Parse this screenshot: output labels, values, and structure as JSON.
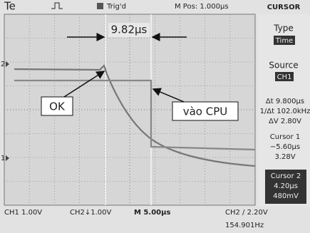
{
  "header": {
    "label": "Te",
    "trigger": "Trig'd",
    "position": "M Pos: 1.000µs",
    "menu": "CURSOR"
  },
  "sidebar": {
    "type_label": "Type",
    "type_value": "Time",
    "source_label": "Source",
    "source_value": "CH1",
    "delta_t": "Δt 9.800µs",
    "inv_delta_t": "1/Δt 102.0kHz",
    "delta_v": "ΔV 2.80V",
    "cursor1_label": "Cursor 1",
    "cursor1_time": "−5.60µs",
    "cursor1_volt": "3.28V",
    "cursor2_label": "Cursor 2",
    "cursor2_time": "4.20µs",
    "cursor2_volt": "480mV"
  },
  "screen": {
    "measurement": "9.82µs",
    "label_ok": "OK",
    "label_cpu": "vào CPU",
    "ch2_marker": "2",
    "ch1_marker": "1"
  },
  "footer": {
    "ch1": "CH1 1.00V",
    "ch2": "CH2↓1.00V",
    "timebase": "M 5.00µs",
    "trigger": "CH2 / 2.20V",
    "frequency": "154.901Hz"
  }
}
